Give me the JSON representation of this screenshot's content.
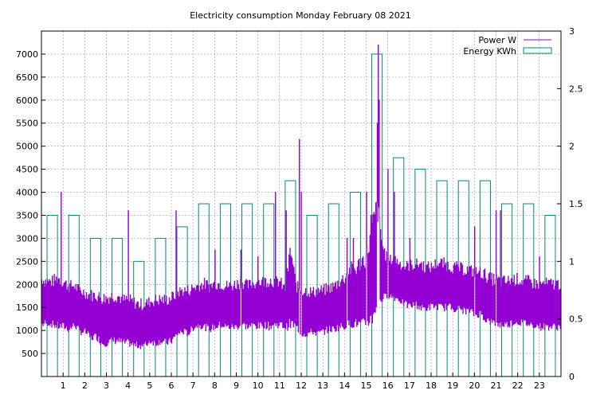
{
  "chart_data": {
    "type": "line",
    "title": "Electricity consumption Monday February 08 2021",
    "xlabel": "",
    "ylabel": "",
    "xlim": [
      0,
      24
    ],
    "ylim": [
      0,
      7500
    ],
    "y2lim": [
      0,
      3
    ],
    "grid": true,
    "legend_position": "top-right",
    "x_ticks": [
      "1",
      "2",
      "3",
      "4",
      "5",
      "6",
      "7",
      "8",
      "9",
      "10",
      "11",
      "12",
      "13",
      "14",
      "15",
      "16",
      "17",
      "18",
      "19",
      "20",
      "21",
      "22",
      "23"
    ],
    "y_ticks": [
      "500",
      "1000",
      "1500",
      "2000",
      "2500",
      "3000",
      "3500",
      "4000",
      "4500",
      "5000",
      "5500",
      "6000",
      "6500",
      "7000"
    ],
    "y2_ticks": [
      "0",
      "0.5",
      "1",
      "1.5",
      "2",
      "2.5",
      "3"
    ],
    "series": [
      {
        "name": "Power W",
        "axis": "y",
        "color": "#9400d3",
        "x": [
          0.0,
          0.25,
          0.5,
          0.75,
          1.0,
          1.25,
          1.5,
          1.75,
          2.0,
          2.25,
          2.5,
          2.75,
          3.0,
          3.25,
          3.5,
          3.75,
          4.0,
          4.25,
          4.5,
          4.75,
          5.0,
          5.25,
          5.5,
          5.75,
          6.0,
          6.25,
          6.5,
          6.75,
          7.0,
          7.25,
          7.5,
          7.75,
          8.0,
          8.25,
          8.5,
          8.75,
          9.0,
          9.25,
          9.5,
          9.75,
          10.0,
          10.25,
          10.5,
          10.75,
          11.0,
          11.25,
          11.5,
          11.75,
          12.0,
          12.25,
          12.5,
          12.75,
          13.0,
          13.25,
          13.5,
          13.75,
          14.0,
          14.25,
          14.5,
          14.75,
          15.0,
          15.25,
          15.5,
          15.75,
          16.0,
          16.25,
          16.5,
          16.75,
          17.0,
          17.25,
          17.5,
          17.75,
          18.0,
          18.25,
          18.5,
          18.75,
          19.0,
          19.25,
          19.5,
          19.75,
          20.0,
          20.25,
          20.5,
          20.75,
          21.0,
          21.25,
          21.5,
          21.75,
          22.0,
          22.25,
          22.5,
          22.75,
          23.0,
          23.25,
          23.5,
          23.75,
          24.0
        ],
        "low": [
          1050,
          1100,
          1050,
          1000,
          1000,
          950,
          1050,
          900,
          900,
          750,
          800,
          650,
          650,
          700,
          700,
          650,
          650,
          600,
          600,
          600,
          700,
          650,
          700,
          650,
          700,
          850,
          900,
          850,
          1000,
          1050,
          1000,
          950,
          1000,
          1050,
          1000,
          1000,
          1000,
          1050,
          1000,
          1050,
          1000,
          1050,
          1000,
          1050,
          1050,
          1000,
          1000,
          1000,
          850,
          850,
          900,
          850,
          900,
          950,
          950,
          1000,
          1000,
          1050,
          1050,
          1000,
          1050,
          1100,
          1500,
          1600,
          1700,
          1650,
          1600,
          1500,
          1450,
          1500,
          1400,
          1400,
          1450,
          1450,
          1400,
          1450,
          1400,
          1400,
          1350,
          1350,
          1250,
          1300,
          1150,
          1100,
          1050,
          1050,
          1050,
          1100,
          1100,
          1100,
          1050,
          1050,
          1000,
          1000,
          1000,
          1000,
          1000
        ],
        "high": [
          2250,
          2200,
          2200,
          2300,
          2200,
          2100,
          2100,
          2000,
          1950,
          1900,
          1900,
          1850,
          1850,
          1900,
          1900,
          1800,
          1800,
          1750,
          1700,
          1700,
          1750,
          1800,
          1800,
          1800,
          1850,
          1950,
          2000,
          2000,
          2050,
          2100,
          2150,
          2100,
          2150,
          2150,
          2100,
          2100,
          2150,
          2200,
          2100,
          2150,
          2200,
          2200,
          2250,
          2200,
          2200,
          2000,
          3000,
          2100,
          2000,
          2000,
          1950,
          2000,
          2000,
          2050,
          2100,
          2200,
          2300,
          2500,
          2500,
          2700,
          2800,
          3500,
          4000,
          3000,
          2600,
          2700,
          2600,
          2500,
          2550,
          2550,
          2600,
          2500,
          2500,
          2600,
          2600,
          2550,
          2500,
          2500,
          2450,
          2450,
          2400,
          2400,
          2350,
          2250,
          2250,
          2200,
          2200,
          2250,
          2250,
          2200,
          2200,
          2150,
          2150,
          2150,
          2150,
          2150,
          2150
        ],
        "spikes": [
          [
            0.9,
            4000
          ],
          [
            4.0,
            3600
          ],
          [
            6.2,
            3600
          ],
          [
            8.0,
            2750
          ],
          [
            9.2,
            2750
          ],
          [
            10.0,
            2600
          ],
          [
            10.8,
            4000
          ],
          [
            11.3,
            3600
          ],
          [
            11.9,
            5150
          ],
          [
            12.0,
            4000
          ],
          [
            14.1,
            3000
          ],
          [
            14.4,
            3000
          ],
          [
            15.0,
            4000
          ],
          [
            15.2,
            3500
          ],
          [
            15.5,
            5500
          ],
          [
            15.55,
            7200
          ],
          [
            15.6,
            6000
          ],
          [
            16.0,
            4500
          ],
          [
            16.3,
            4000
          ],
          [
            17.0,
            3000
          ],
          [
            20.0,
            3250
          ],
          [
            21.0,
            3600
          ],
          [
            21.2,
            3600
          ],
          [
            23.0,
            2600
          ]
        ]
      },
      {
        "name": "Energy KWh",
        "axis": "y2",
        "color": "#008b74",
        "type": "bar",
        "categories": [
          "0",
          "1",
          "2",
          "3",
          "4",
          "5",
          "6",
          "7",
          "8",
          "9",
          "10",
          "11",
          "12",
          "13",
          "14",
          "15",
          "16",
          "17",
          "18",
          "19",
          "20",
          "21",
          "22",
          "23"
        ],
        "values": [
          1.4,
          1.4,
          1.2,
          1.2,
          1.0,
          1.2,
          1.3,
          1.5,
          1.5,
          1.5,
          1.5,
          1.7,
          1.4,
          1.5,
          1.6,
          2.8,
          1.9,
          1.8,
          1.7,
          1.7,
          1.7,
          1.5,
          1.5,
          1.4
        ]
      }
    ]
  },
  "colors": {
    "power": "#9400d3",
    "energy": "#008b74",
    "grid": "#a0a0a0"
  }
}
